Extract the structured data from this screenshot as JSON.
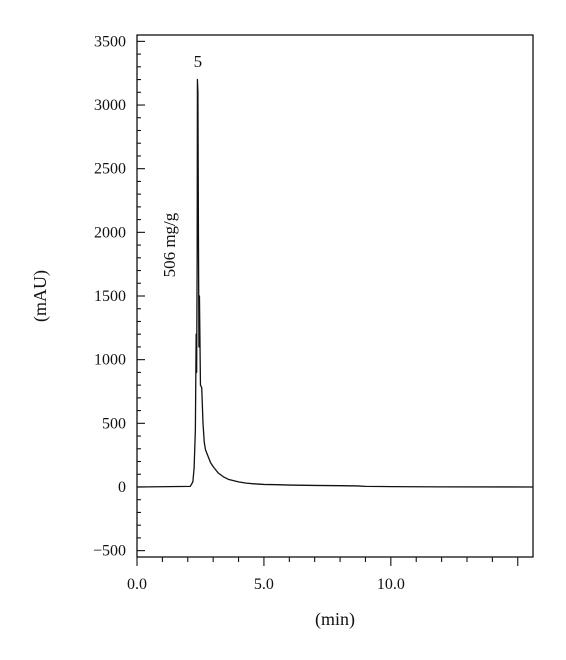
{
  "chart_data": {
    "type": "line",
    "title": "",
    "xlabel": "(min)",
    "ylabel": "(mAU)",
    "xlim": [
      0,
      15.6
    ],
    "ylim": [
      -550,
      3550
    ],
    "x_ticks": [
      "0.0",
      "5.0",
      "10.0"
    ],
    "x_tick_values": [
      0,
      5,
      10
    ],
    "y_ticks": [
      "3500",
      "3000",
      "2500",
      "2000",
      "1500",
      "1000",
      "500",
      "0",
      "−500"
    ],
    "y_tick_values": [
      3500,
      3000,
      2500,
      2000,
      1500,
      1000,
      500,
      0,
      -500
    ],
    "grid": false,
    "annotations": {
      "peak_label": "5",
      "peak_x": 2.4,
      "peak_y": 3250,
      "concentration": "506 mg/g",
      "concentration_x": 1.5,
      "concentration_y": 1900
    },
    "series": [
      {
        "x": [
          0,
          2.1,
          2.2,
          2.25,
          2.3,
          2.33,
          2.35,
          2.37,
          2.38,
          2.4,
          2.42,
          2.44,
          2.46,
          2.5,
          2.55,
          2.6,
          2.65,
          2.7,
          2.8,
          2.9,
          3.0,
          3.2,
          3.4,
          3.6,
          3.8,
          4.0,
          4.3,
          4.6,
          5.0,
          5.5,
          6.0,
          7.0,
          8.0,
          8.7,
          9.0,
          10.0,
          12.0,
          15.6
        ],
        "y": [
          0,
          5,
          40,
          150,
          450,
          1200,
          900,
          1800,
          3200,
          3100,
          2000,
          1100,
          1500,
          800,
          780,
          500,
          350,
          290,
          240,
          190,
          160,
          110,
          80,
          60,
          50,
          40,
          30,
          25,
          20,
          18,
          15,
          12,
          10,
          8,
          5,
          3,
          1,
          0
        ]
      }
    ]
  }
}
